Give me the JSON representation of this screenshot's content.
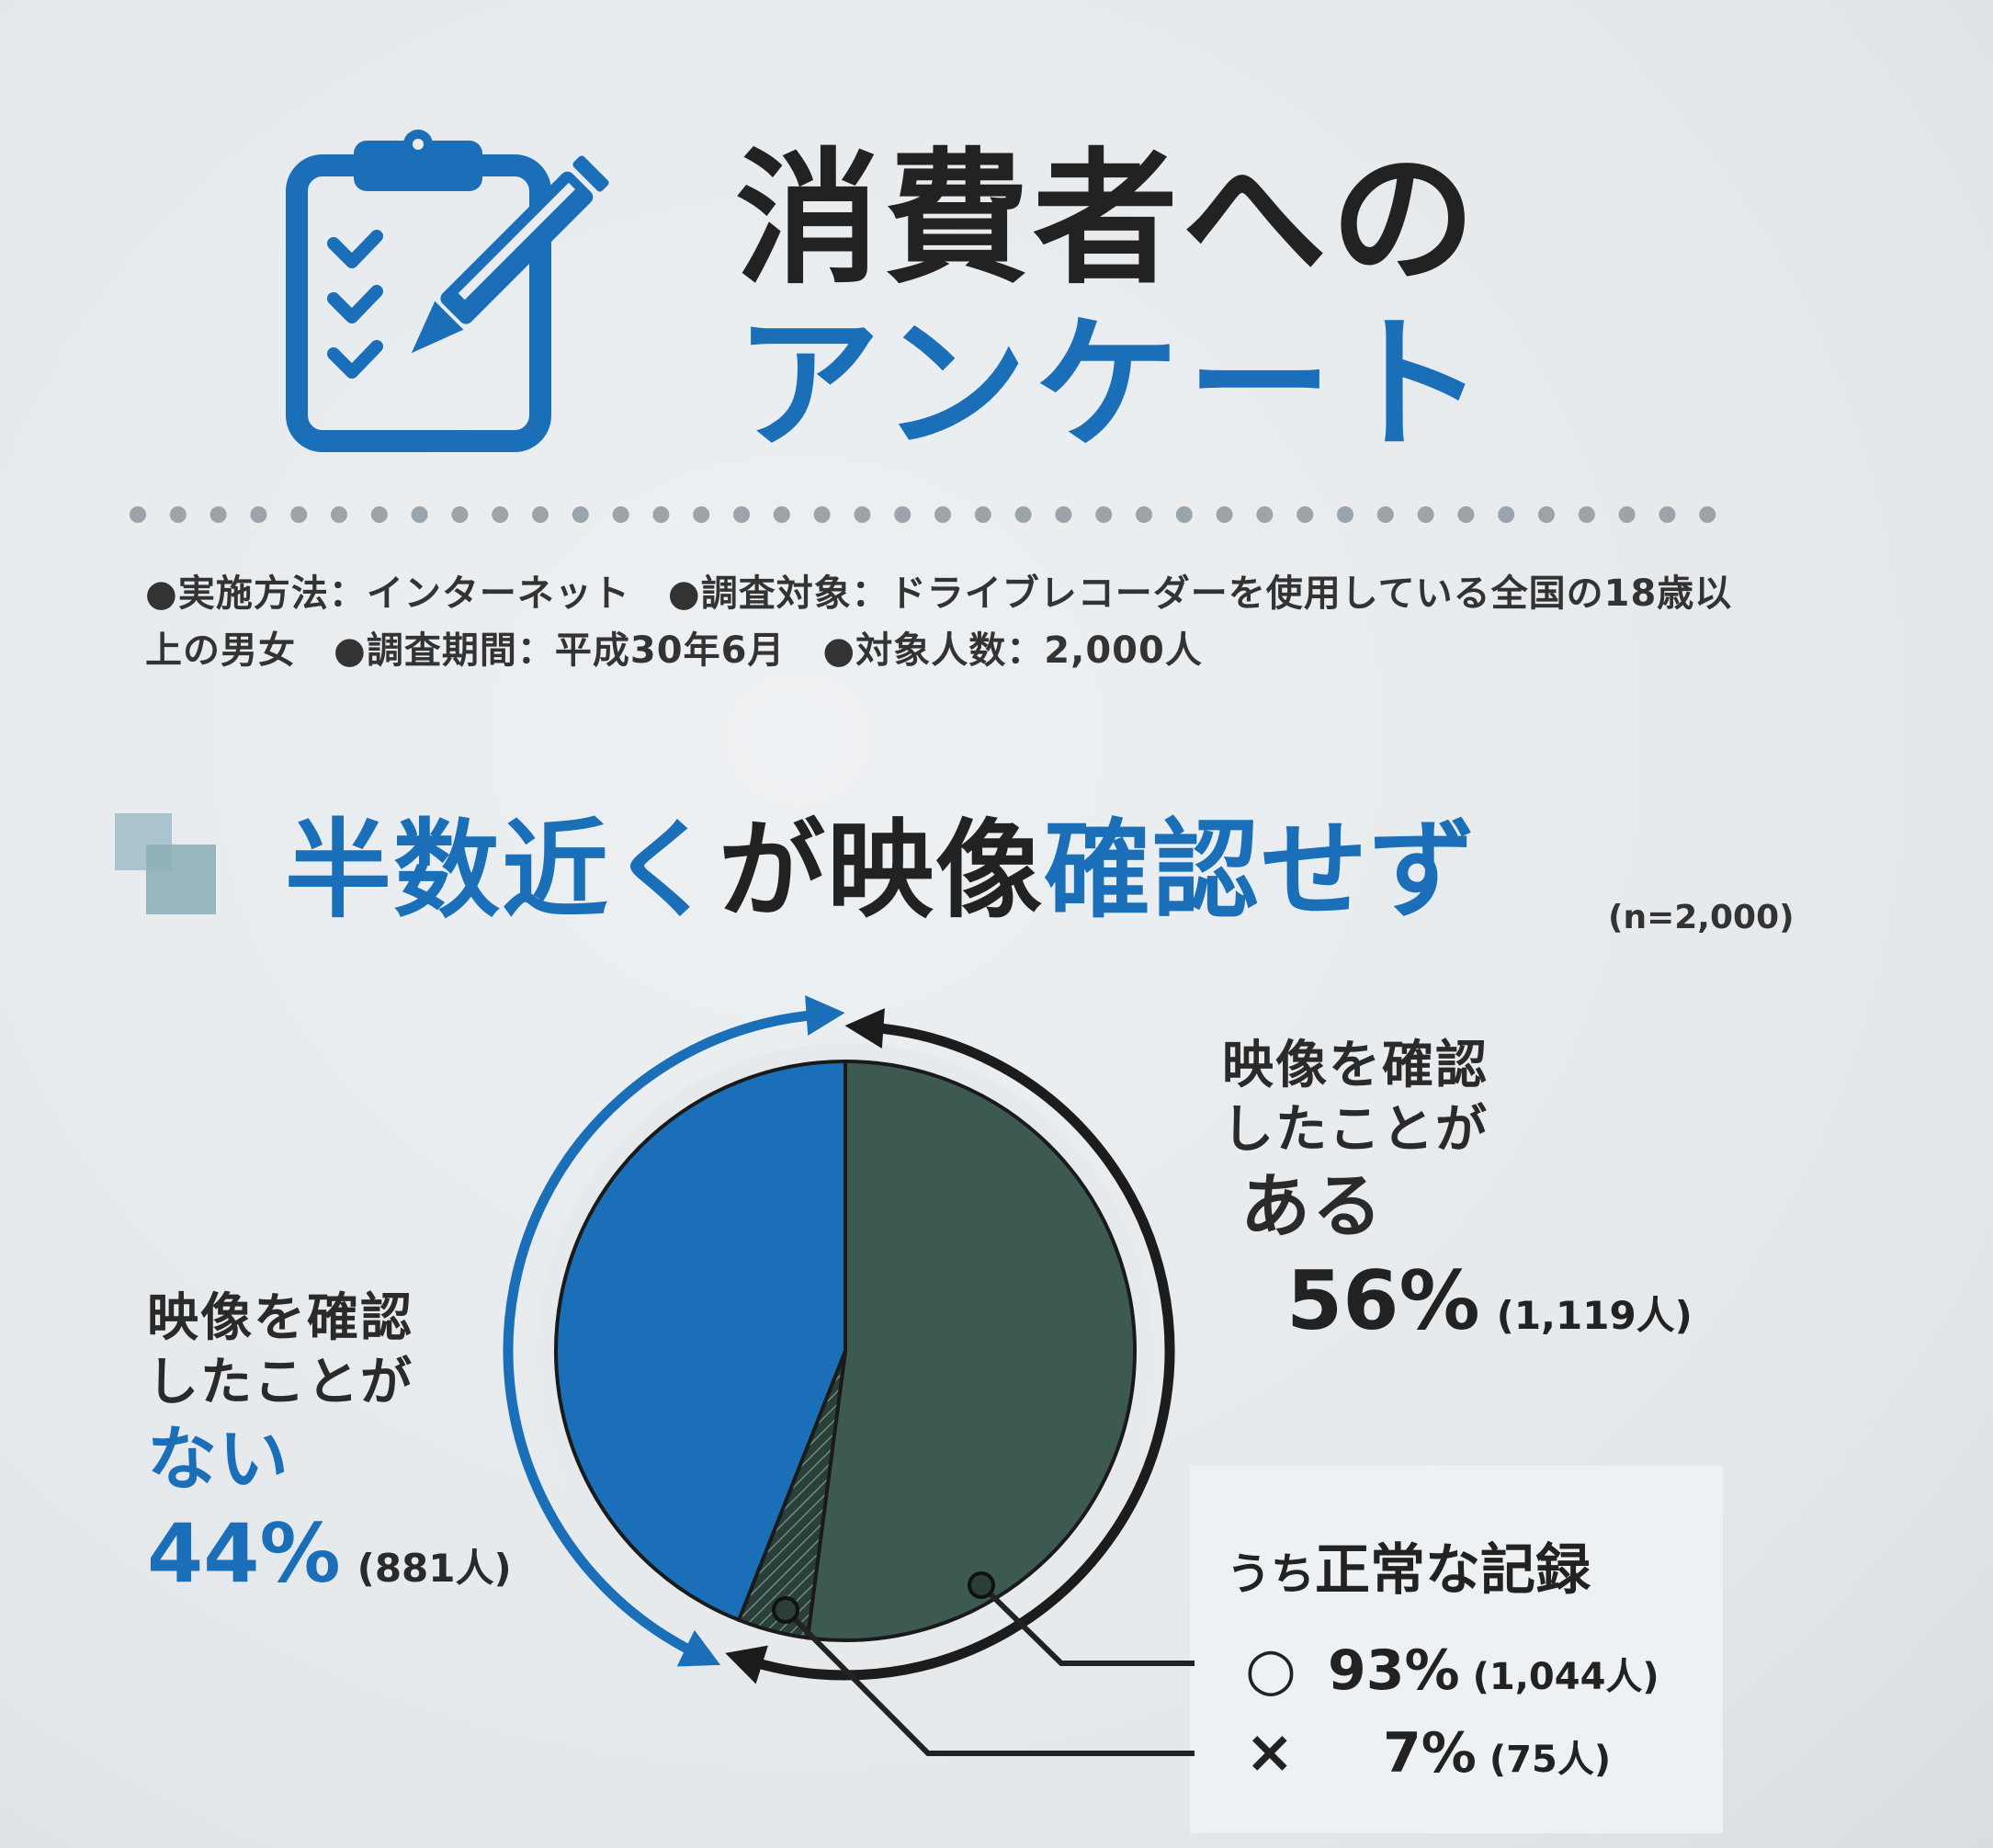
{
  "header": {
    "title_line1": "消費者への",
    "title_line2": "アンケート",
    "icon": "clipboard-checklist-pen-icon"
  },
  "survey_info": {
    "method": "●実施方法：インターネット",
    "target": "●調査対象：ドライブレコーダーを使用している全国の18歳以上の男女",
    "period": "●調査期間：平成30年6月",
    "count": "●対象人数：2,000人"
  },
  "heading": {
    "part1": "半数近く",
    "part2": "が映像",
    "part3": "確認せず",
    "sample_size": "(n=2,000)"
  },
  "chart_data": {
    "type": "pie",
    "title": "半数近くが映像確認せず",
    "n": 2000,
    "slices": [
      {
        "label": "映像を確認したことがある",
        "percent": 56,
        "count_label": "(1,119人)",
        "color": "#3d5a52"
      },
      {
        "label": "映像を確認したことがない",
        "percent": 44,
        "count_label": "(881人)",
        "color": "#1a6fb8"
      }
    ],
    "breakdown": {
      "of": "映像を確認したことがある",
      "title": "うち正常な記録",
      "items": [
        {
          "mark": "○",
          "label": "○",
          "percent": 93,
          "count_label": "(1,044人)"
        },
        {
          "mark": "×",
          "label": "×",
          "percent": 7,
          "count_label": "(75人)"
        }
      ]
    }
  },
  "labels": {
    "yes_line1": "映像を確認",
    "yes_line2": "したことが",
    "yes_emph": "ある",
    "yes_pct": "56%",
    "yes_count": "(1,119人)",
    "no_line1": "映像を確認",
    "no_line2": "したことが",
    "no_emph": "ない",
    "no_pct": "44%",
    "no_count": "(881人)",
    "sub_title_small": "うち",
    "sub_title_big": "正常な記録",
    "ok_mark": "○",
    "ok_pct": "93%",
    "ok_count": "(1,044人)",
    "ng_mark": "×",
    "ng_pct": "7%",
    "ng_count": "(75人)"
  },
  "colors": {
    "accent_blue": "#1a6fb8",
    "dark_green": "#3d5a52",
    "ink": "#222222"
  }
}
